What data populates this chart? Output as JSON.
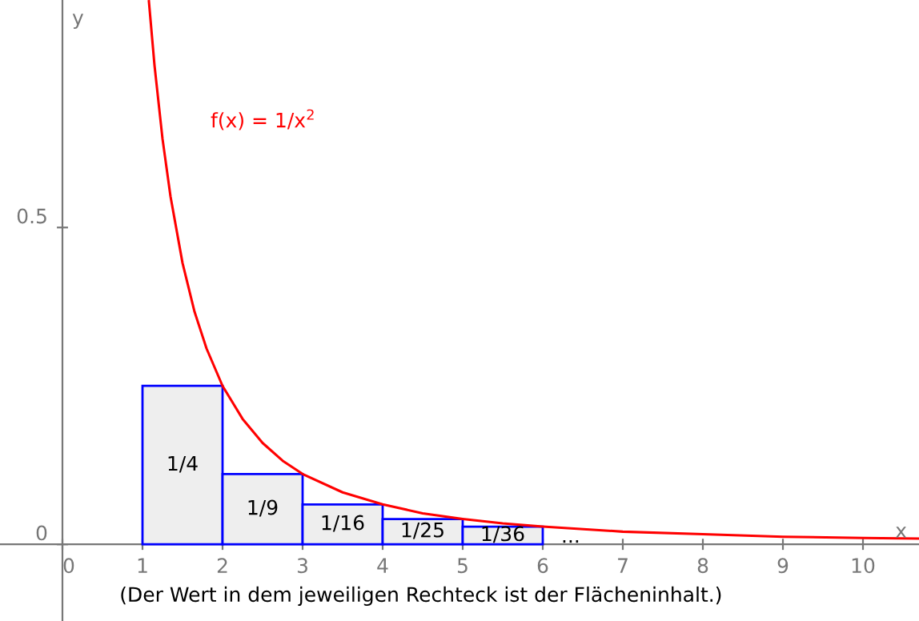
{
  "chart_data": {
    "type": "bar",
    "xlabel": "x",
    "ylabel": "y",
    "x": [
      1.5,
      2.5,
      3.5,
      4.5,
      5.5
    ],
    "xlim": [
      -0.78,
      10.7
    ],
    "ylim": [
      -0.121,
      0.859
    ],
    "xticks": [
      0,
      1,
      2,
      3,
      4,
      5,
      6,
      7,
      8,
      9,
      10
    ],
    "yticks": [
      0,
      0.5
    ],
    "grid": false,
    "legend": false,
    "series": [
      {
        "color": "#eeeeee",
        "values": [
          0.25,
          0.111,
          0.063,
          0.04,
          0.028
        ],
        "value_labels": [
          "1/4",
          "1/9",
          "1/16",
          "1/25",
          "1/36"
        ]
      },
      {
        "type": "line",
        "name": "f(x) = 1/x$^{2}$",
        "color": "#ff0000",
        "x": [
          1.08,
          1.15,
          1.25,
          1.35,
          1.5,
          1.65,
          1.8,
          2,
          2.25,
          2.5,
          2.75,
          3,
          3.5,
          4,
          4.5,
          5,
          5.5,
          6,
          7,
          8,
          9,
          10,
          10.7
        ],
        "values": [
          0.857,
          0.756,
          0.64,
          0.549,
          0.444,
          0.367,
          0.309,
          0.25,
          0.198,
          0.16,
          0.132,
          0.111,
          0.082,
          0.063,
          0.049,
          0.04,
          0.033,
          0.028,
          0.02,
          0.016,
          0.012,
          0.01,
          0.009
        ]
      }
    ],
    "annotations": [
      "...",
      "(Der Wert in dem jeweiligen Rechteck ist der Flächeninhalt.)"
    ]
  }
}
